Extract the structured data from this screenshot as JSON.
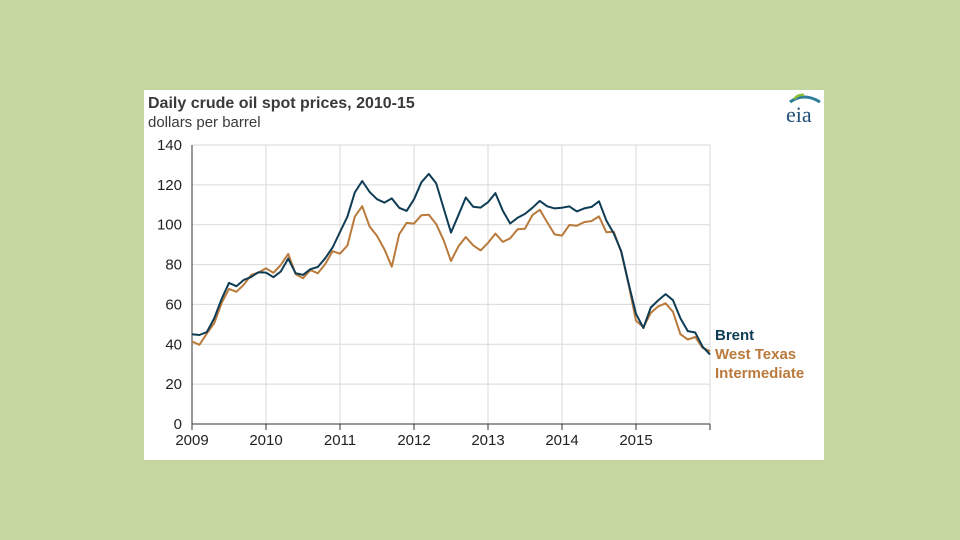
{
  "colors": {
    "background": "#c5d6a0",
    "card": "#ffffff",
    "brent": "#0f3c55",
    "wti": "#b97a3c",
    "grid": "#d9d9d9"
  },
  "logo": {
    "text": "eia"
  },
  "chart_data": {
    "type": "line",
    "title": "Daily crude oil spot  prices, 2010-15",
    "subtitle": "dollars  per barrel",
    "ylim": [
      0,
      140
    ],
    "xlim": [
      2009,
      2016
    ],
    "yticks": [
      "0",
      "20",
      "40",
      "60",
      "80",
      "100",
      "120",
      "140"
    ],
    "xticks": [
      "2009",
      "2010",
      "2011",
      "2012",
      "2013",
      "2014",
      "2015"
    ],
    "legend_position": "right",
    "series": [
      {
        "name": "Brent",
        "legend_label": [
          "Brent"
        ],
        "color": "#0f3c55",
        "x": [
          2009.0,
          2009.1,
          2009.2,
          2009.3,
          2009.4,
          2009.5,
          2009.6,
          2009.7,
          2009.8,
          2009.9,
          2010.0,
          2010.1,
          2010.2,
          2010.3,
          2010.4,
          2010.5,
          2010.6,
          2010.7,
          2010.8,
          2010.9,
          2011.0,
          2011.1,
          2011.2,
          2011.3,
          2011.4,
          2011.5,
          2011.6,
          2011.7,
          2011.8,
          2011.9,
          2012.0,
          2012.1,
          2012.2,
          2012.3,
          2012.4,
          2012.5,
          2012.6,
          2012.7,
          2012.8,
          2012.9,
          2013.0,
          2013.1,
          2013.2,
          2013.3,
          2013.4,
          2013.5,
          2013.6,
          2013.7,
          2013.8,
          2013.9,
          2014.0,
          2014.1,
          2014.2,
          2014.3,
          2014.4,
          2014.5,
          2014.6,
          2014.7,
          2014.8,
          2014.9,
          2015.0,
          2015.1,
          2015.2,
          2015.3,
          2015.4,
          2015.5,
          2015.6,
          2015.7,
          2015.8,
          2015.9,
          2016.0
        ],
        "values": [
          45,
          43,
          46,
          52,
          62,
          70,
          68,
          72,
          75,
          77,
          76,
          74,
          78,
          83,
          76,
          74,
          76,
          78,
          82,
          88,
          95,
          103,
          115,
          123,
          118,
          114,
          112,
          115,
          110,
          108,
          111,
          120,
          125,
          120,
          108,
          95,
          103,
          112,
          110,
          109,
          112,
          116,
          108,
          102,
          104,
          104,
          108,
          111,
          109,
          108,
          108,
          109,
          107,
          109,
          110,
          112,
          103,
          97,
          88,
          72,
          55,
          48,
          57,
          62,
          65,
          62,
          52,
          48,
          47,
          40,
          36
        ]
      },
      {
        "name": "West Texas Intermediate",
        "legend_label": [
          "West Texas",
          "Intermediate"
        ],
        "color": "#b97a3c",
        "x": [
          2009.0,
          2009.1,
          2009.2,
          2009.3,
          2009.4,
          2009.5,
          2009.6,
          2009.7,
          2009.8,
          2009.9,
          2010.0,
          2010.1,
          2010.2,
          2010.3,
          2010.4,
          2010.5,
          2010.6,
          2010.7,
          2010.8,
          2010.9,
          2011.0,
          2011.1,
          2011.2,
          2011.3,
          2011.4,
          2011.5,
          2011.6,
          2011.7,
          2011.8,
          2011.9,
          2012.0,
          2012.1,
          2012.2,
          2012.3,
          2012.4,
          2012.5,
          2012.6,
          2012.7,
          2012.8,
          2012.9,
          2013.0,
          2013.1,
          2013.2,
          2013.3,
          2013.4,
          2013.5,
          2013.6,
          2013.7,
          2013.8,
          2013.9,
          2014.0,
          2014.1,
          2014.2,
          2014.3,
          2014.4,
          2014.5,
          2014.6,
          2014.7,
          2014.8,
          2014.9,
          2015.0,
          2015.1,
          2015.2,
          2015.3,
          2015.4,
          2015.5,
          2015.6,
          2015.7,
          2015.8,
          2015.9,
          2016.0
        ],
        "values": [
          41,
          38,
          44,
          50,
          60,
          69,
          67,
          71,
          75,
          77,
          79,
          76,
          80,
          85,
          74,
          72,
          76,
          75,
          80,
          85,
          87,
          90,
          105,
          110,
          100,
          96,
          88,
          80,
          95,
          100,
          99,
          103,
          105,
          100,
          92,
          83,
          90,
          95,
          90,
          88,
          91,
          96,
          92,
          92,
          96,
          98,
          104,
          107,
          100,
          95,
          95,
          100,
          101,
          103,
          103,
          105,
          97,
          95,
          85,
          70,
          50,
          47,
          55,
          58,
          60,
          58,
          46,
          44,
          45,
          40,
          37
        ]
      }
    ]
  }
}
